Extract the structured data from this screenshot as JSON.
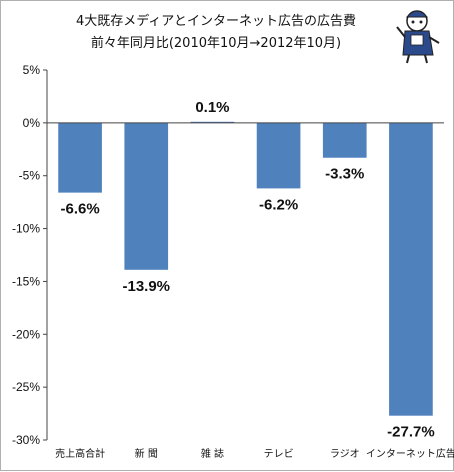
{
  "chart_data": {
    "type": "bar",
    "title": "4大既存メディアとインターネット広告の広告費",
    "subtitle": "前々年同月比(2010年10月→2012年10月)",
    "categories": [
      "売上高合計",
      "新 聞",
      "雑 誌",
      "テレビ",
      "ラジオ",
      "インターネット広告"
    ],
    "values": [
      -6.6,
      -13.9,
      0.1,
      -6.2,
      -3.3,
      -27.7
    ],
    "value_labels": [
      "-6.6%",
      "-13.9%",
      "0.1%",
      "-6.2%",
      "-3.3%",
      "-27.7%"
    ],
    "yticks": [
      "5%",
      "0%",
      "-5%",
      "-10%",
      "-15%",
      "-20%",
      "-25%",
      "-30%"
    ],
    "ylim": [
      -30,
      5
    ],
    "grid": false,
    "bar_color": "#4f81bd"
  },
  "decoration": {
    "mascot_icon": "cartoon-character-icon"
  }
}
